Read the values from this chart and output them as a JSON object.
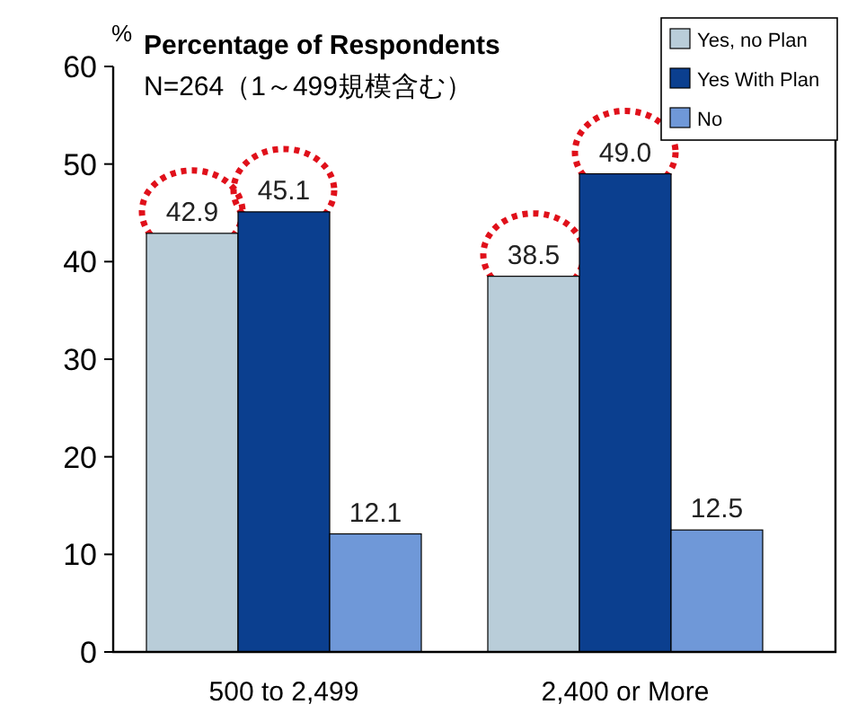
{
  "chart_data": {
    "type": "bar",
    "title": "Percentage of Respondents",
    "subtitle": "N=264（1～499規模含む）",
    "ylabel": "%",
    "categories": [
      "500 to 2,499",
      "2,400 or More"
    ],
    "series": [
      {
        "name": "Yes, no Plan",
        "color": "#b9cdd9",
        "values": [
          42.9,
          38.5
        ],
        "value_labels": [
          "42.9",
          "38.5"
        ]
      },
      {
        "name": "Yes With Plan",
        "color": "#0b3f8f",
        "values": [
          45.1,
          49.0
        ],
        "value_labels": [
          "45.1",
          "49.0"
        ]
      },
      {
        "name": "No",
        "color": "#6f98d8",
        "values": [
          12.1,
          12.5
        ],
        "value_labels": [
          "12.1",
          "12.5"
        ]
      }
    ],
    "ylim": [
      0,
      60
    ],
    "yticks": [
      0,
      10,
      20,
      30,
      40,
      50,
      60
    ],
    "grid": false,
    "legend": "top right"
  }
}
